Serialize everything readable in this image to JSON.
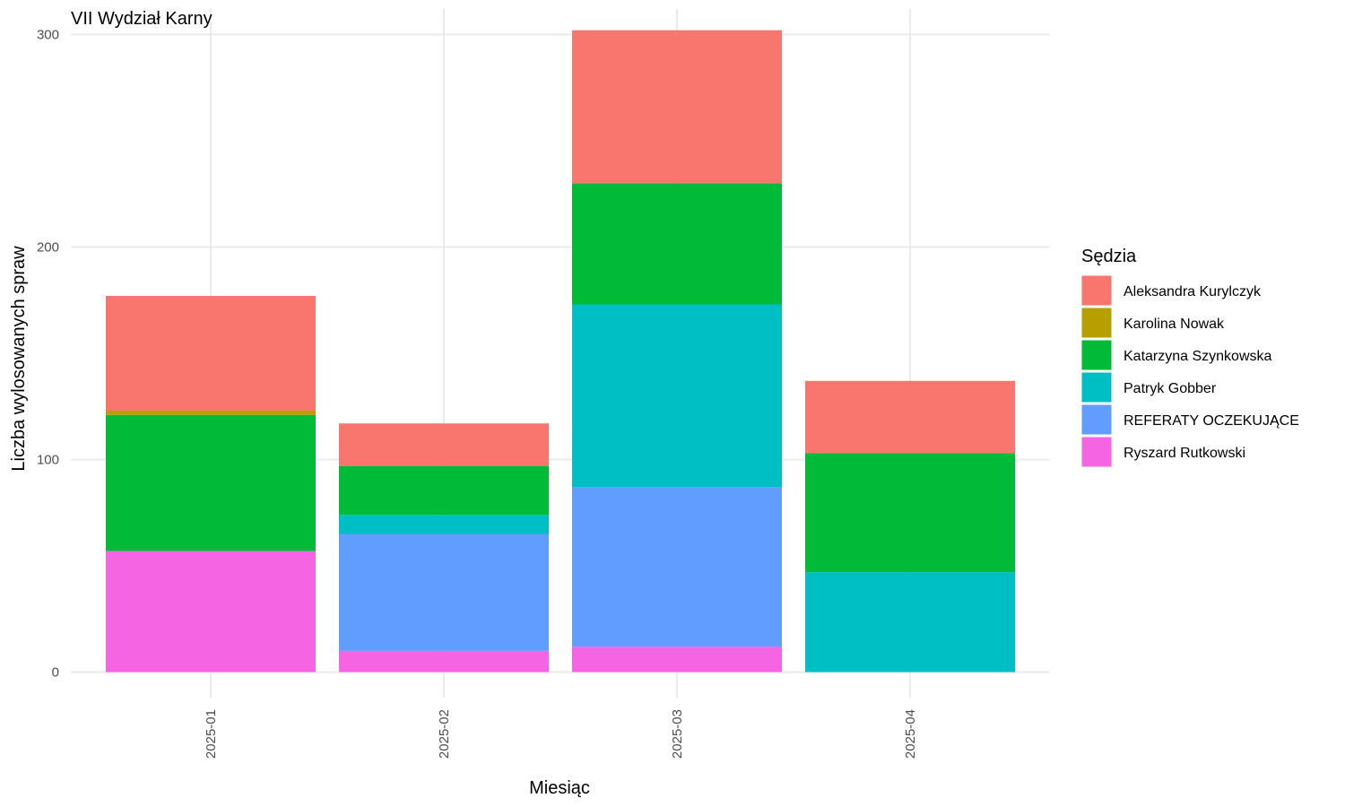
{
  "chart_data": {
    "type": "bar",
    "stacked": true,
    "title": "VII Wydział Karny",
    "xlabel": "Miesiąc",
    "ylabel": "Liczba wylosowanych spraw",
    "ylim": [
      -12,
      312
    ],
    "y_ticks": [
      0,
      100,
      200,
      300
    ],
    "grid": true,
    "legend_title": "Sędzia",
    "legend_position": "right",
    "categories": [
      "2025-01",
      "2025-02",
      "2025-03",
      "2025-04"
    ],
    "series": [
      {
        "name": "Ryszard Rutkowski",
        "color": "#F564E3",
        "values": [
          57,
          10,
          12,
          0
        ]
      },
      {
        "name": "REFERATY OCZEKUJĄCE",
        "color": "#619CFF",
        "values": [
          0,
          55,
          75,
          0
        ]
      },
      {
        "name": "Patryk Gobber",
        "color": "#00BFC4",
        "values": [
          0,
          9,
          86,
          47
        ]
      },
      {
        "name": "Katarzyna Szynkowska",
        "color": "#00BA38",
        "values": [
          64,
          23,
          57,
          56
        ]
      },
      {
        "name": "Karolina Nowak",
        "color": "#B79F00",
        "values": [
          2,
          0,
          0,
          0
        ]
      },
      {
        "name": "Aleksandra Kurylczyk",
        "color": "#F8766D",
        "values": [
          54,
          20,
          72,
          34
        ]
      }
    ],
    "legend_order": [
      "Aleksandra Kurylczyk",
      "Karolina Nowak",
      "Katarzyna Szynkowska",
      "Patryk Gobber",
      "REFERATY OCZEKUJĄCE",
      "Ryszard Rutkowski"
    ]
  }
}
